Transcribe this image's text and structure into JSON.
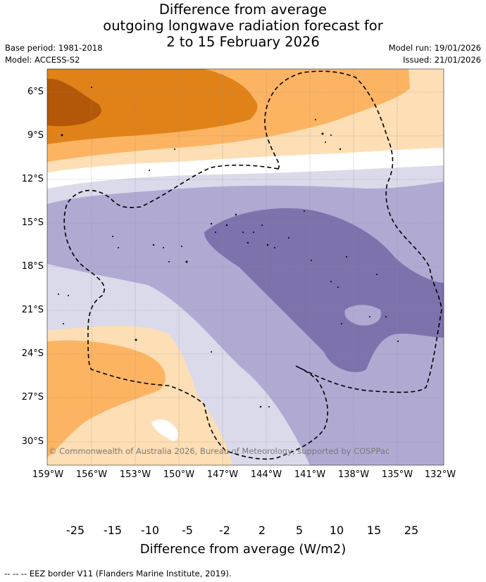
{
  "title_lines": [
    "Difference from average",
    "outgoing longwave radiation forecast for",
    "2 to 15 February 2026"
  ],
  "base_period": "Base period: 1981-2018",
  "model": "Model: ACCESS-S2",
  "model_run": "Model run: 19/01/2026",
  "issued": "Issued: 21/01/2026",
  "credit": "© Commonwealth of Australia 2026, Bureau of Meteorology, supported by COSPPac",
  "lat_labels": [
    "6°S",
    "9°S",
    "12°S",
    "15°S",
    "18°S",
    "21°S",
    "24°S",
    "27°S",
    "30°S"
  ],
  "lon_labels": [
    "159°W",
    "156°W",
    "153°W",
    "150°W",
    "147°W",
    "144°W",
    "141°W",
    "138°W",
    "135°W",
    "132°W"
  ],
  "colorbar": {
    "ticks": [
      "-25",
      "-15",
      "-10",
      "-5",
      "-2",
      "2",
      "5",
      "10",
      "15",
      "25"
    ],
    "colors": [
      "#3a0d5c",
      "#5b2a8a",
      "#7e72ad",
      "#b0aad3",
      "#dadaeb",
      "#ffffff",
      "#fddeb5",
      "#fdb462",
      "#e08218",
      "#b35808",
      "#7f3b08"
    ],
    "label": "Difference from average (W/m2)"
  },
  "eez_note": "--  --  -- EEZ border V11 (Flanders Marine Institute, 2019)."
}
